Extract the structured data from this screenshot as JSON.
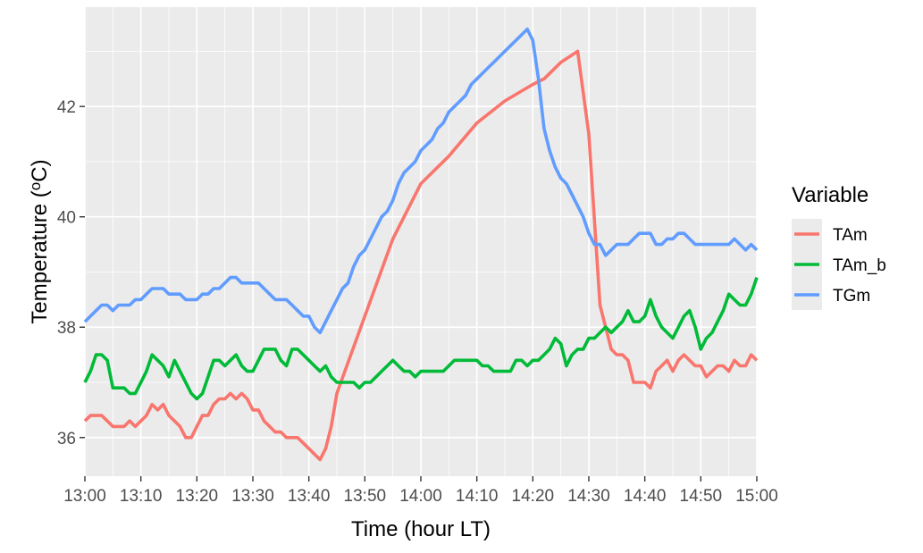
{
  "chart_data": {
    "type": "line",
    "xlabel": "Time (hour LT)",
    "ylabel": "Temperature (oC)",
    "ylabel_superscript_char": "o",
    "legend_title": "Variable",
    "legend_position": "right",
    "grid": true,
    "xlim": [
      0,
      120
    ],
    "ylim": [
      35.3,
      43.8
    ],
    "x_tick_labels": [
      "13:00",
      "13:10",
      "13:20",
      "13:30",
      "13:40",
      "13:50",
      "14:00",
      "14:10",
      "14:20",
      "14:30",
      "14:40",
      "14:50",
      "15:00"
    ],
    "y_ticks": [
      36,
      38,
      40,
      42
    ],
    "y_tick_labels": [
      "36",
      "38",
      "40",
      "42"
    ],
    "series": [
      {
        "name": "TAm",
        "color": "#F8766D",
        "x": [
          0,
          1,
          2,
          3,
          4,
          5,
          6,
          7,
          8,
          9,
          10,
          11,
          12,
          13,
          14,
          15,
          16,
          17,
          18,
          19,
          20,
          21,
          22,
          23,
          24,
          25,
          26,
          27,
          28,
          29,
          30,
          31,
          32,
          33,
          34,
          35,
          36,
          37,
          38,
          39,
          40,
          41,
          42,
          43,
          44,
          45,
          50,
          55,
          60,
          65,
          70,
          75,
          80,
          82,
          85,
          88,
          90,
          92,
          93,
          94,
          95,
          96,
          97,
          98,
          99,
          100,
          101,
          102,
          103,
          104,
          105,
          106,
          107,
          108,
          109,
          110,
          111,
          112,
          113,
          114,
          115,
          116,
          117,
          118,
          119,
          120
        ],
        "values": [
          36.3,
          36.4,
          36.4,
          36.4,
          36.3,
          36.2,
          36.2,
          36.2,
          36.3,
          36.2,
          36.3,
          36.4,
          36.6,
          36.5,
          36.6,
          36.4,
          36.3,
          36.2,
          36.0,
          36.0,
          36.2,
          36.4,
          36.4,
          36.6,
          36.7,
          36.7,
          36.8,
          36.7,
          36.8,
          36.7,
          36.5,
          36.5,
          36.3,
          36.2,
          36.1,
          36.1,
          36.0,
          36.0,
          36.0,
          35.9,
          35.8,
          35.7,
          35.6,
          35.8,
          36.2,
          36.8,
          38.2,
          39.6,
          40.6,
          41.1,
          41.7,
          42.1,
          42.4,
          42.5,
          42.8,
          43.0,
          41.5,
          38.4,
          38.0,
          37.6,
          37.5,
          37.5,
          37.4,
          37.0,
          37.0,
          37.0,
          36.9,
          37.2,
          37.3,
          37.4,
          37.2,
          37.4,
          37.5,
          37.4,
          37.3,
          37.3,
          37.1,
          37.2,
          37.3,
          37.3,
          37.2,
          37.4,
          37.3,
          37.3,
          37.5,
          37.4
        ]
      },
      {
        "name": "TAm_b",
        "color": "#00BA38",
        "x": [
          0,
          1,
          2,
          3,
          4,
          5,
          6,
          7,
          8,
          9,
          10,
          11,
          12,
          13,
          14,
          15,
          16,
          17,
          18,
          19,
          20,
          21,
          22,
          23,
          24,
          25,
          26,
          27,
          28,
          29,
          30,
          31,
          32,
          33,
          34,
          35,
          36,
          37,
          38,
          39,
          40,
          41,
          42,
          43,
          44,
          45,
          46,
          47,
          48,
          49,
          50,
          51,
          52,
          53,
          54,
          55,
          56,
          57,
          58,
          59,
          60,
          61,
          62,
          63,
          64,
          65,
          66,
          67,
          68,
          69,
          70,
          71,
          72,
          73,
          74,
          75,
          76,
          77,
          78,
          79,
          80,
          81,
          82,
          83,
          84,
          85,
          86,
          87,
          88,
          89,
          90,
          91,
          92,
          93,
          94,
          95,
          96,
          97,
          98,
          99,
          100,
          101,
          102,
          103,
          104,
          105,
          106,
          107,
          108,
          109,
          110,
          111,
          112,
          113,
          114,
          115,
          116,
          117,
          118,
          119,
          120
        ],
        "values": [
          37.0,
          37.2,
          37.5,
          37.5,
          37.4,
          36.9,
          36.9,
          36.9,
          36.8,
          36.8,
          37.0,
          37.2,
          37.5,
          37.4,
          37.3,
          37.1,
          37.4,
          37.2,
          37.0,
          36.8,
          36.7,
          36.8,
          37.1,
          37.4,
          37.4,
          37.3,
          37.4,
          37.5,
          37.3,
          37.2,
          37.2,
          37.4,
          37.6,
          37.6,
          37.6,
          37.4,
          37.3,
          37.6,
          37.6,
          37.5,
          37.4,
          37.3,
          37.2,
          37.3,
          37.1,
          37.0,
          37.0,
          37.0,
          37.0,
          36.9,
          37.0,
          37.0,
          37.1,
          37.2,
          37.3,
          37.4,
          37.3,
          37.2,
          37.2,
          37.1,
          37.2,
          37.2,
          37.2,
          37.2,
          37.2,
          37.3,
          37.4,
          37.4,
          37.4,
          37.4,
          37.4,
          37.3,
          37.3,
          37.2,
          37.2,
          37.2,
          37.2,
          37.4,
          37.4,
          37.3,
          37.4,
          37.4,
          37.5,
          37.6,
          37.8,
          37.7,
          37.3,
          37.5,
          37.6,
          37.6,
          37.8,
          37.8,
          37.9,
          38.0,
          37.9,
          38.0,
          38.1,
          38.3,
          38.1,
          38.1,
          38.2,
          38.5,
          38.2,
          38.0,
          37.9,
          37.8,
          38.0,
          38.2,
          38.3,
          38.0,
          37.6,
          37.8,
          37.9,
          38.1,
          38.3,
          38.6,
          38.5,
          38.4,
          38.4,
          38.6,
          38.9
        ]
      },
      {
        "name": "TGm",
        "color": "#619CFF",
        "x": [
          0,
          1,
          2,
          3,
          4,
          5,
          6,
          7,
          8,
          9,
          10,
          11,
          12,
          13,
          14,
          15,
          16,
          17,
          18,
          19,
          20,
          21,
          22,
          23,
          24,
          25,
          26,
          27,
          28,
          29,
          30,
          31,
          32,
          33,
          34,
          35,
          36,
          37,
          38,
          39,
          40,
          41,
          42,
          43,
          44,
          45,
          46,
          47,
          48,
          49,
          50,
          51,
          52,
          53,
          54,
          55,
          56,
          57,
          58,
          59,
          60,
          61,
          62,
          63,
          64,
          65,
          66,
          67,
          68,
          69,
          70,
          71,
          72,
          73,
          74,
          75,
          76,
          77,
          78,
          79,
          80,
          81,
          82,
          83,
          84,
          85,
          86,
          87,
          88,
          89,
          90,
          91,
          92,
          93,
          94,
          95,
          96,
          97,
          98,
          99,
          100,
          101,
          102,
          103,
          104,
          105,
          106,
          107,
          108,
          109,
          110,
          111,
          112,
          113,
          114,
          115,
          116,
          117,
          118,
          119,
          120
        ],
        "values": [
          38.1,
          38.2,
          38.3,
          38.4,
          38.4,
          38.3,
          38.4,
          38.4,
          38.4,
          38.5,
          38.5,
          38.6,
          38.7,
          38.7,
          38.7,
          38.6,
          38.6,
          38.6,
          38.5,
          38.5,
          38.5,
          38.6,
          38.6,
          38.7,
          38.7,
          38.8,
          38.9,
          38.9,
          38.8,
          38.8,
          38.8,
          38.8,
          38.7,
          38.6,
          38.5,
          38.5,
          38.5,
          38.4,
          38.3,
          38.2,
          38.2,
          38.0,
          37.9,
          38.1,
          38.3,
          38.5,
          38.7,
          38.8,
          39.1,
          39.3,
          39.4,
          39.6,
          39.8,
          40.0,
          40.1,
          40.3,
          40.6,
          40.8,
          40.9,
          41.0,
          41.2,
          41.3,
          41.4,
          41.6,
          41.7,
          41.9,
          42.0,
          42.1,
          42.2,
          42.4,
          42.5,
          42.6,
          42.7,
          42.8,
          42.9,
          43.0,
          43.1,
          43.2,
          43.3,
          43.4,
          43.2,
          42.5,
          41.6,
          41.2,
          40.9,
          40.7,
          40.6,
          40.4,
          40.2,
          40.0,
          39.7,
          39.5,
          39.5,
          39.3,
          39.4,
          39.5,
          39.5,
          39.5,
          39.6,
          39.7,
          39.7,
          39.7,
          39.5,
          39.5,
          39.6,
          39.6,
          39.7,
          39.7,
          39.6,
          39.5,
          39.5,
          39.5,
          39.5,
          39.5,
          39.5,
          39.5,
          39.6,
          39.5,
          39.4,
          39.5,
          39.4
        ]
      }
    ]
  }
}
